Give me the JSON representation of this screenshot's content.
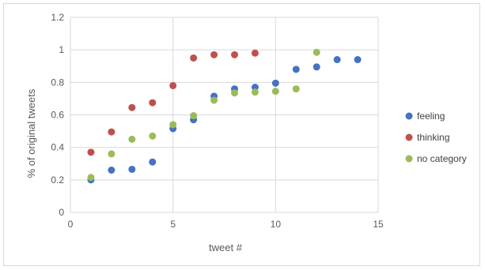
{
  "chart_data": {
    "type": "scatter",
    "title": "",
    "xlabel": "tweet #",
    "ylabel": "% of original tweets",
    "xlim": [
      0,
      15
    ],
    "ylim": [
      0,
      1.2
    ],
    "xticks": [
      0,
      5,
      10,
      15
    ],
    "yticks": [
      0,
      0.2,
      0.4,
      0.6,
      0.8,
      1,
      1.2
    ],
    "xtick_labels": [
      "0",
      "5",
      "10",
      "15"
    ],
    "ytick_labels": [
      "0",
      "0.2",
      "0.4",
      "0.6",
      "0.8",
      "1",
      "1.2"
    ],
    "grid": true,
    "legend_position": "right",
    "series": [
      {
        "name": "feeling",
        "color": "#4472c4",
        "x": [
          1,
          2,
          3,
          4,
          5,
          6,
          7,
          8,
          9,
          10,
          11,
          12,
          13,
          14
        ],
        "y": [
          0.2,
          0.26,
          0.265,
          0.31,
          0.515,
          0.57,
          0.715,
          0.76,
          0.77,
          0.795,
          0.88,
          0.895,
          0.94,
          0.94
        ]
      },
      {
        "name": "thinking",
        "color": "#c0504d",
        "x": [
          1,
          2,
          3,
          4,
          5,
          6,
          7,
          8,
          9
        ],
        "y": [
          0.37,
          0.495,
          0.645,
          0.675,
          0.78,
          0.95,
          0.97,
          0.97,
          0.98
        ]
      },
      {
        "name": "no category",
        "color": "#9bbb59",
        "x": [
          1,
          2,
          3,
          4,
          5,
          6,
          7,
          8,
          9,
          10,
          11,
          12
        ],
        "y": [
          0.215,
          0.36,
          0.45,
          0.47,
          0.54,
          0.595,
          0.69,
          0.735,
          0.74,
          0.745,
          0.76,
          0.985
        ]
      }
    ]
  }
}
